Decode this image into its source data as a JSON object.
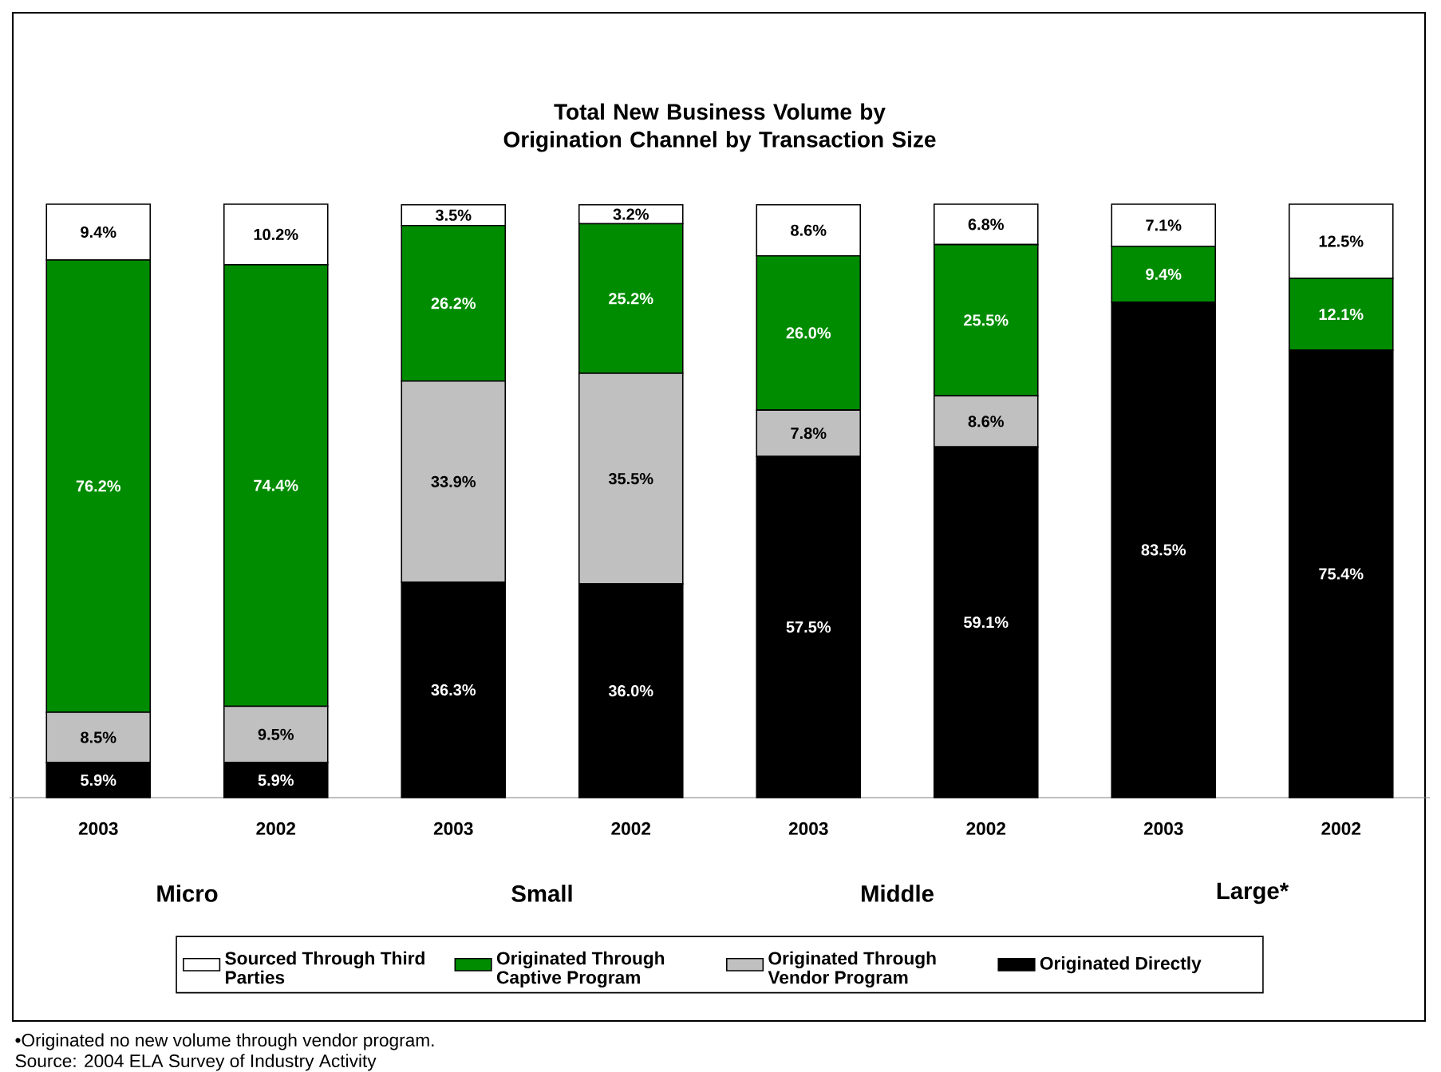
{
  "chart_data": {
    "type": "bar",
    "stacked": true,
    "title": "Total New Business Volume by Origination Channel by Transaction Size",
    "categories": [
      "2003",
      "2002",
      "2003",
      "2002",
      "2003",
      "2002",
      "2003",
      "2002"
    ],
    "tick_labels": "x",
    "legend": "bottom",
    "series": [
      {
        "name": "Originated Directly",
        "color": "#000000",
        "values": [
          5.9,
          5.9,
          36.3,
          36.0,
          57.5,
          59.1,
          83.5,
          75.4
        ],
        "value_labels": [
          "5.9%",
          "5.9%",
          "36.3%",
          "36.0%",
          "57.5%",
          "59.1%",
          "83.5%",
          "75.4%"
        ]
      },
      {
        "name": "Originated Through Vendor Program",
        "color": "#c0c0c0",
        "values": [
          8.5,
          9.5,
          33.9,
          35.5,
          7.8,
          8.6,
          null,
          null
        ],
        "value_labels": [
          "8.5%",
          "9.5%",
          "33.9%",
          "35.5%",
          "7.8%",
          "8.6%",
          null,
          null
        ]
      },
      {
        "name": "Originated Through Captive Program",
        "color": "#008c00",
        "values": [
          76.2,
          74.4,
          26.2,
          25.2,
          26.0,
          25.5,
          9.4,
          12.1
        ],
        "value_labels": [
          "76.2%",
          "74.4%",
          "26.2%",
          "25.2%",
          "26.0%",
          "25.5%",
          "9.4%",
          "12.1%"
        ]
      },
      {
        "name": "Sourced Through Third Parties",
        "color": "#ffffff",
        "values": [
          9.4,
          10.2,
          3.5,
          3.2,
          8.6,
          6.8,
          7.1,
          12.5
        ],
        "value_labels": [
          "9.4%",
          "10.2%",
          "3.5%",
          "3.2%",
          "8.6%",
          "6.8%",
          "7.1%",
          "12.5%"
        ]
      }
    ],
    "annotations": [
      "Micro",
      "Small",
      "Middle",
      "Large*",
      "•Originated no new volume through vendor program.",
      "Source: 2004 ELA Survey of Industry Activity"
    ]
  }
}
